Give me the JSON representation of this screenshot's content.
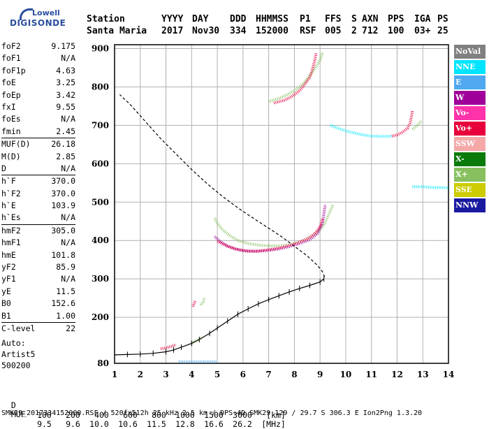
{
  "logo": {
    "line1": "Lowell",
    "line2": "DIGISONDE"
  },
  "header": {
    "labels": [
      "Station",
      "YYYY",
      "DAY",
      "DDD",
      "HHMMSS",
      "P1",
      "FFS",
      "S",
      "AXN",
      "PPS",
      "IGA",
      "PS"
    ],
    "values": [
      "Santa Maria",
      "2017",
      "Nov30",
      "334",
      "152000",
      "RSF",
      "005",
      "2",
      "712",
      "100",
      "03+",
      "25"
    ]
  },
  "params": [
    {
      "k": "foF2",
      "v": "9.175"
    },
    {
      "k": "foF1",
      "v": "N/A"
    },
    {
      "k": "foF1p",
      "v": "4.63"
    },
    {
      "k": "foE",
      "v": "3.25"
    },
    {
      "k": "foEp",
      "v": "3.42"
    },
    {
      "k": "fxI",
      "v": "9.55"
    },
    {
      "k": "foEs",
      "v": "N/A"
    },
    {
      "k": "fmin",
      "v": "2.45"
    },
    {
      "k": "MUF(D)",
      "v": "26.18",
      "sep": true
    },
    {
      "k": "M(D)",
      "v": "2.85"
    },
    {
      "k": "D",
      "v": "N/A"
    },
    {
      "k": "h`F",
      "v": "370.0",
      "sep": true
    },
    {
      "k": "h`F2",
      "v": "370.0"
    },
    {
      "k": "h`E",
      "v": "103.9"
    },
    {
      "k": "h`Es",
      "v": "N/A"
    },
    {
      "k": "hmF2",
      "v": "305.0",
      "sep": true
    },
    {
      "k": "hmF1",
      "v": "N/A"
    },
    {
      "k": "hmE",
      "v": "101.8"
    },
    {
      "k": "yF2",
      "v": "85.9"
    },
    {
      "k": "yF1",
      "v": "N/A"
    },
    {
      "k": "yE",
      "v": "11.5"
    },
    {
      "k": "B0",
      "v": "152.6"
    },
    {
      "k": "B1",
      "v": "1.00"
    },
    {
      "k": "C-level",
      "v": "22",
      "sep": true
    }
  ],
  "auto": {
    "label": "Auto:",
    "artist": "Artist5",
    "version": "500200"
  },
  "legend": [
    {
      "label": "NoVal",
      "bg": "#808080",
      "fg": "#ffffff"
    },
    {
      "label": "NNE",
      "bg": "#00e5ff",
      "fg": "#ffffff"
    },
    {
      "label": "E",
      "bg": "#4fa8f0",
      "fg": "#ffffff"
    },
    {
      "label": "W",
      "bg": "#a0009a",
      "fg": "#ffffff"
    },
    {
      "label": "Vo-",
      "bg": "#ff33aa",
      "fg": "#ffffff"
    },
    {
      "label": "Vo+",
      "bg": "#e8003c",
      "fg": "#ffffff"
    },
    {
      "label": "SSW",
      "bg": "#f4a8a8",
      "fg": "#ffffff"
    },
    {
      "label": "X-",
      "bg": "#0a7a0a",
      "fg": "#ffffff"
    },
    {
      "label": "X+",
      "bg": "#88c060",
      "fg": "#ffffff"
    },
    {
      "label": "SSE",
      "bg": "#cccc00",
      "fg": "#ffffff"
    },
    {
      "label": "NNW",
      "bg": "#1a1aa0",
      "fg": "#ffffff"
    }
  ],
  "muf_table": {
    "d_label": "D",
    "d_values": [
      "100",
      "200",
      "400",
      "600",
      "800",
      "1000",
      "1500",
      "3000",
      "[km]"
    ],
    "muf_label": "MUF",
    "muf_values": [
      "9.5",
      "9.6",
      "10.0",
      "10.6",
      "11.5",
      "12.8",
      "16.6",
      "26.2",
      "[MHz]"
    ]
  },
  "footer": "SMK29_2017334152000.RSF / 520fx512h 25 kHz 2.5 km / DPS-4D SMK29 129 / 29.7 S 306.3 E Ion2Png 1.3.20",
  "chart_data": {
    "type": "scatter",
    "x_ticks": [
      1,
      2,
      3,
      4,
      5,
      6,
      7,
      8,
      9,
      10,
      11,
      12,
      13,
      14
    ],
    "y_ticks": [
      80,
      200,
      300,
      400,
      500,
      600,
      700,
      800,
      900
    ],
    "xlim": [
      1,
      14
    ],
    "ylim": [
      80,
      910
    ],
    "grid": true,
    "ptrace": [
      [
        1.0,
        102
      ],
      [
        1.5,
        103
      ],
      [
        2.0,
        104
      ],
      [
        2.5,
        106
      ],
      [
        3.0,
        110
      ],
      [
        3.3,
        115
      ],
      [
        3.6,
        122
      ],
      [
        4.0,
        132
      ],
      [
        4.3,
        142
      ],
      [
        4.7,
        158
      ],
      [
        5.0,
        172
      ],
      [
        5.4,
        190
      ],
      [
        5.8,
        208
      ],
      [
        6.2,
        222
      ],
      [
        6.6,
        235
      ],
      [
        7.0,
        246
      ],
      [
        7.4,
        256
      ],
      [
        7.8,
        266
      ],
      [
        8.2,
        275
      ],
      [
        8.6,
        283
      ],
      [
        9.0,
        292
      ],
      [
        9.15,
        300
      ]
    ],
    "profile": [
      [
        9.175,
        305
      ],
      [
        9.1,
        318
      ],
      [
        8.9,
        335
      ],
      [
        8.5,
        360
      ],
      [
        8.0,
        385
      ],
      [
        7.5,
        410
      ],
      [
        7.0,
        432
      ],
      [
        6.4,
        458
      ],
      [
        5.8,
        485
      ],
      [
        5.2,
        515
      ],
      [
        4.6,
        548
      ],
      [
        4.0,
        585
      ],
      [
        3.4,
        625
      ],
      [
        2.8,
        665
      ],
      [
        2.2,
        710
      ],
      [
        1.6,
        755
      ],
      [
        1.2,
        780
      ]
    ],
    "traces": [
      {
        "color": "#88c060",
        "points": [
          [
            4.9,
            458
          ],
          [
            5.0,
            445
          ],
          [
            5.2,
            428
          ],
          [
            5.5,
            412
          ],
          [
            5.8,
            400
          ],
          [
            6.2,
            392
          ],
          [
            6.6,
            388
          ],
          [
            7.0,
            386
          ],
          [
            7.4,
            386
          ],
          [
            7.8,
            389
          ],
          [
            8.2,
            396
          ],
          [
            8.6,
            408
          ],
          [
            8.9,
            422
          ],
          [
            9.15,
            440
          ],
          [
            9.3,
            462
          ],
          [
            9.5,
            492
          ]
        ]
      },
      {
        "color": "#a0009a",
        "points": [
          [
            4.9,
            410
          ],
          [
            5.1,
            398
          ],
          [
            5.4,
            385
          ],
          [
            5.8,
            376
          ],
          [
            6.2,
            372
          ],
          [
            6.6,
            372
          ],
          [
            7.0,
            374
          ],
          [
            7.4,
            378
          ],
          [
            7.8,
            384
          ],
          [
            8.2,
            392
          ],
          [
            8.6,
            402
          ],
          [
            8.9,
            418
          ],
          [
            9.1,
            445
          ],
          [
            9.15,
            470
          ],
          [
            9.2,
            492
          ]
        ]
      },
      {
        "color": "#e8003c",
        "points": [
          [
            5.0,
            398
          ],
          [
            5.3,
            388
          ],
          [
            5.7,
            378
          ],
          [
            6.1,
            373
          ],
          [
            6.5,
            372
          ],
          [
            6.9,
            375
          ],
          [
            7.3,
            379
          ],
          [
            7.7,
            385
          ],
          [
            8.1,
            393
          ],
          [
            8.5,
            404
          ],
          [
            8.8,
            418
          ],
          [
            9.0,
            436
          ],
          [
            9.1,
            458
          ]
        ]
      },
      {
        "color": "#88c060",
        "points": [
          [
            7.0,
            762
          ],
          [
            7.4,
            770
          ],
          [
            7.8,
            782
          ],
          [
            8.1,
            795
          ],
          [
            8.4,
            812
          ],
          [
            8.6,
            830
          ],
          [
            8.8,
            848
          ],
          [
            9.0,
            870
          ],
          [
            9.1,
            890
          ]
        ]
      },
      {
        "color": "#e8003c",
        "points": [
          [
            7.2,
            758
          ],
          [
            7.6,
            765
          ],
          [
            7.9,
            775
          ],
          [
            8.2,
            790
          ],
          [
            8.4,
            806
          ],
          [
            8.6,
            825
          ],
          [
            8.7,
            845
          ],
          [
            8.8,
            870
          ],
          [
            8.85,
            890
          ]
        ]
      },
      {
        "color": "#00e5ff",
        "points": [
          [
            9.4,
            700
          ],
          [
            9.8,
            690
          ],
          [
            10.2,
            682
          ],
          [
            10.6,
            676
          ],
          [
            11.0,
            672
          ],
          [
            11.4,
            671
          ],
          [
            11.8,
            672
          ]
        ]
      },
      {
        "color": "#e8003c",
        "points": [
          [
            11.8,
            672
          ],
          [
            12.0,
            675
          ],
          [
            12.2,
            682
          ],
          [
            12.4,
            692
          ],
          [
            12.5,
            705
          ],
          [
            12.55,
            720
          ],
          [
            12.6,
            738
          ]
        ]
      },
      {
        "color": "#88c060",
        "points": [
          [
            12.6,
            690
          ],
          [
            12.8,
            700
          ],
          [
            12.95,
            712
          ]
        ]
      },
      {
        "color": "#00e5ff",
        "points": [
          [
            12.6,
            540
          ],
          [
            13.0,
            540
          ],
          [
            13.4,
            538
          ],
          [
            13.8,
            538
          ],
          [
            14.0,
            537
          ]
        ]
      },
      {
        "color": "#e8003c",
        "points": [
          [
            2.8,
            118
          ],
          [
            3.0,
            120
          ],
          [
            3.2,
            124
          ],
          [
            3.4,
            128
          ]
        ]
      },
      {
        "color": "#88c060",
        "points": [
          [
            4.0,
            132
          ],
          [
            4.2,
            140
          ],
          [
            4.4,
            146
          ]
        ]
      },
      {
        "color": "#4fa8f0",
        "points": [
          [
            3.5,
            84
          ],
          [
            3.9,
            84
          ],
          [
            4.3,
            84
          ],
          [
            4.7,
            84
          ],
          [
            5.0,
            84
          ]
        ]
      },
      {
        "color": "#e8003c",
        "points": [
          [
            4.05,
            228
          ],
          [
            4.1,
            236
          ],
          [
            4.15,
            244
          ]
        ]
      },
      {
        "color": "#88c060",
        "points": [
          [
            4.35,
            232
          ],
          [
            4.45,
            240
          ],
          [
            4.5,
            250
          ]
        ]
      }
    ]
  }
}
